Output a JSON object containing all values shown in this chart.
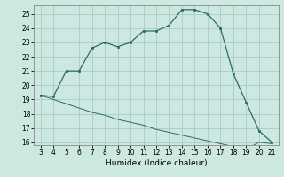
{
  "title": "",
  "xlabel": "Humidex (Indice chaleur)",
  "background_color": "#cce8e0",
  "line_color": "#2d6b5e",
  "grid_color": "#aaccc4",
  "x_data": [
    3,
    4,
    5,
    6,
    7,
    8,
    9,
    10,
    11,
    12,
    13,
    14,
    15,
    16,
    17,
    18,
    19,
    20,
    21
  ],
  "y_main": [
    19.3,
    19.2,
    21.0,
    21.0,
    22.6,
    23.0,
    22.7,
    23.0,
    23.8,
    23.8,
    24.2,
    25.3,
    25.3,
    25.0,
    24.0,
    20.8,
    18.8,
    16.8,
    16.0
  ],
  "y_secondary": [
    19.3,
    19.0,
    18.7,
    18.4,
    18.1,
    17.9,
    17.6,
    17.4,
    17.2,
    16.9,
    16.7,
    16.5,
    16.3,
    16.1,
    15.9,
    15.7,
    15.5,
    16.0,
    15.9
  ],
  "ylim": [
    15.8,
    25.6
  ],
  "xlim": [
    2.5,
    21.5
  ],
  "yticks": [
    16,
    17,
    18,
    19,
    20,
    21,
    22,
    23,
    24,
    25
  ],
  "xticks": [
    3,
    4,
    5,
    6,
    7,
    8,
    9,
    10,
    11,
    12,
    13,
    14,
    15,
    16,
    17,
    18,
    19,
    20,
    21
  ],
  "tick_fontsize": 5.5,
  "xlabel_fontsize": 6.5,
  "spine_color": "#888888"
}
